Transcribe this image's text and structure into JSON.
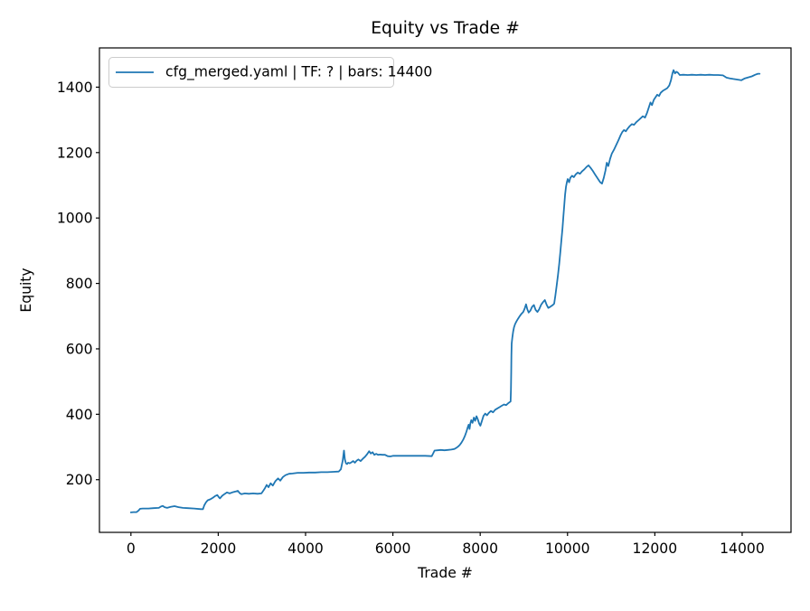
{
  "figure": {
    "background": "#ffffff"
  },
  "chart_data": {
    "type": "line",
    "title": "Equity vs Trade #",
    "xlabel": "Trade #",
    "ylabel": "Equity",
    "grid": false,
    "legend": {
      "position": "upper left",
      "entries": [
        {
          "label": "cfg_merged.yaml | TF: ? | bars: 14400",
          "color": "#1f77b4"
        }
      ]
    },
    "colors": {
      "line": "#1f77b4",
      "spine": "#000000",
      "legend_border": "#cccccc"
    },
    "x_ticks": [
      0,
      2000,
      4000,
      6000,
      8000,
      10000,
      12000,
      14000
    ],
    "y_ticks": [
      200,
      400,
      600,
      800,
      1000,
      1200,
      1400
    ],
    "xlim": [
      -721,
      15119
    ],
    "ylim": [
      39,
      1520
    ],
    "series": [
      {
        "name": "cfg_merged.yaml | TF: ? | bars: 14400",
        "color": "#1f77b4",
        "points": [
          [
            0,
            100
          ],
          [
            60,
            101
          ],
          [
            130,
            101
          ],
          [
            170,
            105
          ],
          [
            210,
            111
          ],
          [
            270,
            112
          ],
          [
            400,
            112
          ],
          [
            520,
            113
          ],
          [
            640,
            114
          ],
          [
            690,
            118
          ],
          [
            730,
            120
          ],
          [
            770,
            116
          ],
          [
            830,
            114
          ],
          [
            910,
            117
          ],
          [
            1000,
            119
          ],
          [
            1090,
            116
          ],
          [
            1190,
            114
          ],
          [
            1300,
            113
          ],
          [
            1450,
            112
          ],
          [
            1600,
            110
          ],
          [
            1650,
            110
          ],
          [
            1680,
            122
          ],
          [
            1720,
            131
          ],
          [
            1760,
            137
          ],
          [
            1820,
            140
          ],
          [
            1880,
            145
          ],
          [
            1930,
            150
          ],
          [
            1980,
            153
          ],
          [
            2010,
            147
          ],
          [
            2040,
            143
          ],
          [
            2090,
            151
          ],
          [
            2140,
            156
          ],
          [
            2200,
            161
          ],
          [
            2260,
            158
          ],
          [
            2320,
            161
          ],
          [
            2400,
            164
          ],
          [
            2450,
            166
          ],
          [
            2490,
            159
          ],
          [
            2530,
            156
          ],
          [
            2610,
            158
          ],
          [
            2700,
            157
          ],
          [
            2800,
            158
          ],
          [
            2900,
            157
          ],
          [
            2990,
            158
          ],
          [
            3030,
            166
          ],
          [
            3070,
            174
          ],
          [
            3110,
            184
          ],
          [
            3150,
            177
          ],
          [
            3200,
            189
          ],
          [
            3250,
            182
          ],
          [
            3310,
            196
          ],
          [
            3370,
            204
          ],
          [
            3420,
            197
          ],
          [
            3480,
            208
          ],
          [
            3540,
            214
          ],
          [
            3620,
            218
          ],
          [
            3700,
            219
          ],
          [
            3820,
            221
          ],
          [
            3950,
            221
          ],
          [
            4080,
            222
          ],
          [
            4220,
            222
          ],
          [
            4360,
            223
          ],
          [
            4500,
            223
          ],
          [
            4640,
            224
          ],
          [
            4760,
            225
          ],
          [
            4810,
            232
          ],
          [
            4850,
            258
          ],
          [
            4880,
            289
          ],
          [
            4900,
            262
          ],
          [
            4925,
            250
          ],
          [
            4950,
            248
          ],
          [
            4975,
            252
          ],
          [
            5010,
            250
          ],
          [
            5050,
            253
          ],
          [
            5090,
            257
          ],
          [
            5130,
            252
          ],
          [
            5170,
            258
          ],
          [
            5210,
            262
          ],
          [
            5260,
            257
          ],
          [
            5310,
            264
          ],
          [
            5360,
            270
          ],
          [
            5410,
            278
          ],
          [
            5455,
            287
          ],
          [
            5495,
            280
          ],
          [
            5535,
            284
          ],
          [
            5575,
            276
          ],
          [
            5615,
            279
          ],
          [
            5660,
            276
          ],
          [
            5710,
            277
          ],
          [
            5760,
            276
          ],
          [
            5820,
            276
          ],
          [
            5880,
            272
          ],
          [
            5940,
            271
          ],
          [
            6010,
            273
          ],
          [
            6120,
            273
          ],
          [
            6260,
            273
          ],
          [
            6420,
            273
          ],
          [
            6580,
            273
          ],
          [
            6740,
            273
          ],
          [
            6890,
            272
          ],
          [
            6925,
            281
          ],
          [
            6955,
            289
          ],
          [
            7020,
            290
          ],
          [
            7100,
            291
          ],
          [
            7180,
            290
          ],
          [
            7260,
            291
          ],
          [
            7340,
            292
          ],
          [
            7410,
            294
          ],
          [
            7450,
            297
          ],
          [
            7490,
            301
          ],
          [
            7530,
            306
          ],
          [
            7570,
            313
          ],
          [
            7610,
            322
          ],
          [
            7650,
            334
          ],
          [
            7685,
            347
          ],
          [
            7715,
            360
          ],
          [
            7735,
            368
          ],
          [
            7755,
            355
          ],
          [
            7775,
            372
          ],
          [
            7795,
            382
          ],
          [
            7825,
            374
          ],
          [
            7855,
            390
          ],
          [
            7885,
            380
          ],
          [
            7915,
            394
          ],
          [
            7945,
            385
          ],
          [
            7975,
            372
          ],
          [
            8005,
            365
          ],
          [
            8035,
            378
          ],
          [
            8075,
            395
          ],
          [
            8115,
            402
          ],
          [
            8155,
            397
          ],
          [
            8195,
            404
          ],
          [
            8245,
            410
          ],
          [
            8295,
            406
          ],
          [
            8345,
            414
          ],
          [
            8395,
            418
          ],
          [
            8445,
            422
          ],
          [
            8495,
            426
          ],
          [
            8545,
            430
          ],
          [
            8595,
            428
          ],
          [
            8645,
            434
          ],
          [
            8695,
            439
          ],
          [
            8705,
            475
          ],
          [
            8710,
            530
          ],
          [
            8715,
            580
          ],
          [
            8720,
            616
          ],
          [
            8735,
            634
          ],
          [
            8755,
            652
          ],
          [
            8775,
            666
          ],
          [
            8800,
            676
          ],
          [
            8830,
            684
          ],
          [
            8865,
            692
          ],
          [
            8905,
            700
          ],
          [
            8945,
            707
          ],
          [
            8985,
            713
          ],
          [
            9020,
            723
          ],
          [
            9050,
            736
          ],
          [
            9080,
            721
          ],
          [
            9110,
            711
          ],
          [
            9150,
            717
          ],
          [
            9190,
            729
          ],
          [
            9230,
            734
          ],
          [
            9270,
            719
          ],
          [
            9310,
            713
          ],
          [
            9350,
            721
          ],
          [
            9395,
            735
          ],
          [
            9440,
            743
          ],
          [
            9480,
            749
          ],
          [
            9520,
            735
          ],
          [
            9560,
            725
          ],
          [
            9610,
            729
          ],
          [
            9655,
            733
          ],
          [
            9695,
            738
          ],
          [
            9720,
            762
          ],
          [
            9750,
            792
          ],
          [
            9780,
            825
          ],
          [
            9810,
            860
          ],
          [
            9835,
            895
          ],
          [
            9860,
            932
          ],
          [
            9885,
            968
          ],
          [
            9905,
            1005
          ],
          [
            9925,
            1040
          ],
          [
            9945,
            1072
          ],
          [
            9965,
            1096
          ],
          [
            9985,
            1110
          ],
          [
            10005,
            1119
          ],
          [
            10035,
            1109
          ],
          [
            10065,
            1123
          ],
          [
            10105,
            1129
          ],
          [
            10145,
            1125
          ],
          [
            10185,
            1133
          ],
          [
            10235,
            1139
          ],
          [
            10285,
            1135
          ],
          [
            10335,
            1143
          ],
          [
            10385,
            1149
          ],
          [
            10435,
            1156
          ],
          [
            10480,
            1161
          ],
          [
            10530,
            1153
          ],
          [
            10580,
            1144
          ],
          [
            10640,
            1131
          ],
          [
            10700,
            1119
          ],
          [
            10750,
            1109
          ],
          [
            10790,
            1105
          ],
          [
            10830,
            1123
          ],
          [
            10870,
            1146
          ],
          [
            10900,
            1169
          ],
          [
            10935,
            1159
          ],
          [
            10975,
            1181
          ],
          [
            11015,
            1197
          ],
          [
            11065,
            1209
          ],
          [
            11115,
            1223
          ],
          [
            11165,
            1237
          ],
          [
            11215,
            1253
          ],
          [
            11255,
            1263
          ],
          [
            11295,
            1269
          ],
          [
            11335,
            1265
          ],
          [
            11375,
            1273
          ],
          [
            11425,
            1281
          ],
          [
            11475,
            1287
          ],
          [
            11525,
            1285
          ],
          [
            11575,
            1293
          ],
          [
            11625,
            1299
          ],
          [
            11675,
            1305
          ],
          [
            11725,
            1311
          ],
          [
            11775,
            1307
          ],
          [
            11820,
            1321
          ],
          [
            11860,
            1337
          ],
          [
            11900,
            1353
          ],
          [
            11935,
            1345
          ],
          [
            11975,
            1361
          ],
          [
            12015,
            1369
          ],
          [
            12055,
            1377
          ],
          [
            12095,
            1373
          ],
          [
            12135,
            1383
          ],
          [
            12185,
            1389
          ],
          [
            12235,
            1393
          ],
          [
            12285,
            1397
          ],
          [
            12330,
            1405
          ],
          [
            12370,
            1421
          ],
          [
            12405,
            1443
          ],
          [
            12430,
            1452
          ],
          [
            12460,
            1442
          ],
          [
            12495,
            1447
          ],
          [
            12530,
            1444
          ],
          [
            12570,
            1437
          ],
          [
            12650,
            1438
          ],
          [
            12750,
            1437
          ],
          [
            12850,
            1438
          ],
          [
            12950,
            1437
          ],
          [
            13050,
            1438
          ],
          [
            13150,
            1437
          ],
          [
            13250,
            1438
          ],
          [
            13350,
            1437
          ],
          [
            13450,
            1437
          ],
          [
            13560,
            1436
          ],
          [
            13640,
            1429
          ],
          [
            13720,
            1427
          ],
          [
            13800,
            1425
          ],
          [
            13900,
            1423
          ],
          [
            13980,
            1421
          ],
          [
            14060,
            1427
          ],
          [
            14140,
            1430
          ],
          [
            14220,
            1433
          ],
          [
            14300,
            1438
          ],
          [
            14360,
            1441
          ],
          [
            14400,
            1441
          ]
        ]
      }
    ]
  }
}
